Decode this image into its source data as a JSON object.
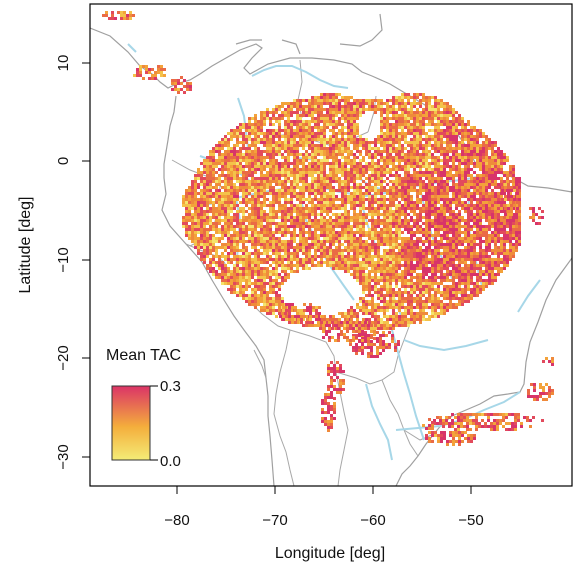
{
  "map": {
    "x_axis": {
      "label": "Longitude [deg]",
      "ticks": [
        {
          "value": -80,
          "label": "−80"
        },
        {
          "value": -70,
          "label": "−70"
        },
        {
          "value": -60,
          "label": "−60"
        },
        {
          "value": -50,
          "label": "−50"
        }
      ],
      "range": [
        -89,
        -41.5
      ]
    },
    "y_axis": {
      "label": "Latitude [deg]",
      "ticks": [
        {
          "value": 10,
          "label": "10"
        },
        {
          "value": 0,
          "label": "0"
        },
        {
          "value": -10,
          "label": "−10"
        },
        {
          "value": -20,
          "label": "−20"
        },
        {
          "value": -30,
          "label": "−30"
        }
      ],
      "range": [
        -32.6,
        15.6
      ]
    },
    "legend": {
      "title": "Mean TAC",
      "max_label": "0.3",
      "min_label": "0.0",
      "placement": "bottom-left"
    },
    "colors": {
      "low": "#f2e36a",
      "mid": "#f3a53a",
      "high": "#e03a6e",
      "rivers": "#a7d7e8",
      "borders": "#a0a0a0"
    }
  }
}
